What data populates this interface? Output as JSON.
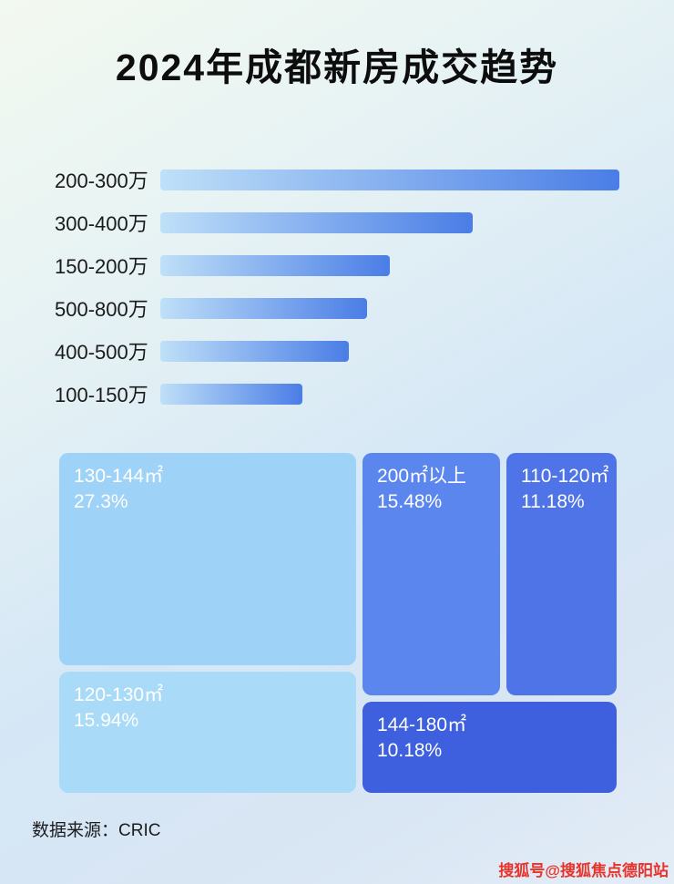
{
  "title": "2024年成都新房成交趋势",
  "footer": {
    "source": "数据来源：CRIC"
  },
  "watermark": "搜狐号@搜狐焦点德阳站",
  "colors": {
    "bar_start": "#bfe0f8",
    "bar_end": "#4a7de6",
    "title": "#0d0d0d",
    "watermark": "#e8332a"
  },
  "chart_data": [
    {
      "type": "bar",
      "orientation": "horizontal",
      "note": "no numeric axis shown; values are estimated relative bar lengths (max = 100)",
      "categories": [
        "200-300万",
        "300-400万",
        "150-200万",
        "500-800万",
        "400-500万",
        "100-150万"
      ],
      "values": [
        100,
        68,
        50,
        45,
        41,
        31
      ],
      "title": "",
      "xlabel": "",
      "ylabel": "",
      "grid": false,
      "legend": false
    },
    {
      "type": "treemap",
      "title": "",
      "items": [
        {
          "name": "130-144㎡",
          "value": 27.3,
          "label": "27.3%",
          "color": "#9ed2f6"
        },
        {
          "name": "120-130㎡",
          "value": 15.94,
          "label": "15.94%",
          "color": "#a9dbf8"
        },
        {
          "name": "200㎡以上",
          "value": 15.48,
          "label": "15.48%",
          "color": "#5b86ee"
        },
        {
          "name": "110-120㎡",
          "value": 11.18,
          "label": "11.18%",
          "color": "#4e74e7"
        },
        {
          "name": "144-180㎡",
          "value": 10.18,
          "label": "10.18%",
          "color": "#3e5fde"
        }
      ]
    }
  ]
}
